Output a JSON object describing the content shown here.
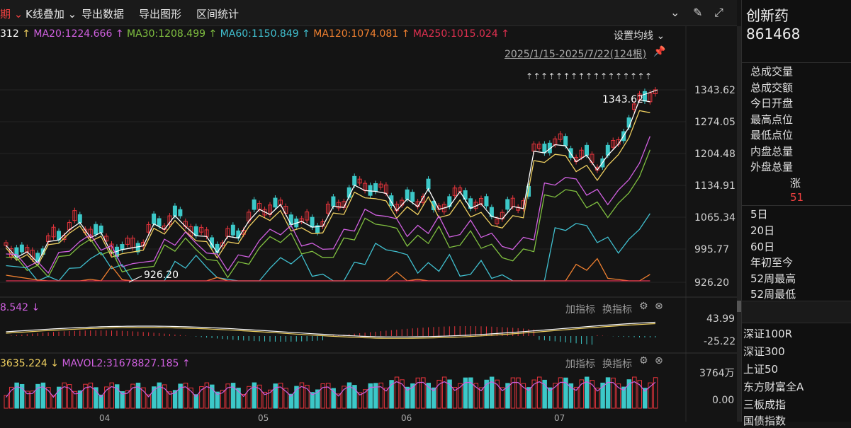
{
  "toolbar": {
    "period_tab": "期",
    "kline_overlay": "K线叠加",
    "export_data": "导出数据",
    "export_chart": "导出图形",
    "interval_stats": "区间统计"
  },
  "ma_legend": {
    "ma_first": "312",
    "ma20": "MA20:1224.666",
    "ma30": "MA30:1208.499",
    "ma60": "MA60:1150.849",
    "ma120": "MA120:1074.081",
    "ma250": "MA250:1015.024",
    "settings": "设置均线"
  },
  "range_label": "2025/1/15-2025/7/22(124根)",
  "price_axis": [
    "1343.62",
    "1274.05",
    "1204.48",
    "1134.91",
    "1065.34",
    "995.77",
    "926.20"
  ],
  "annotations": {
    "high": "1343.62",
    "low": "926.20"
  },
  "macd_panel": {
    "value": "8.542",
    "add_indicator": "加指标",
    "switch_indicator": "换指标",
    "axis_top": "43.99",
    "axis_bottom": "-25.22"
  },
  "vol_panel": {
    "value": "3635.224",
    "mavol2": "MAVOL2:31678827.185",
    "add_indicator": "加指标",
    "switch_indicator": "换指标",
    "axis_top": "3764万",
    "axis_bottom": "0.00"
  },
  "x_axis_labels": [
    "04",
    "05",
    "06",
    "07"
  ],
  "right_panel": {
    "name": "创新药",
    "code": "861468",
    "stats": [
      "总成交量",
      "总成交额",
      "今日开盘",
      "最高点位",
      "最低点位",
      "内盘总量",
      "外盘总量"
    ],
    "rise_label": "涨",
    "rise_count": "51",
    "periods": [
      "5日",
      "20日",
      "60日",
      "年初至今",
      "52周最高",
      "52周最低"
    ],
    "indexes": [
      "深证100R",
      "深证300",
      "上证50",
      "东方财富全A",
      "三板成指",
      "国债指数"
    ]
  },
  "colors": {
    "up": "#e8343c",
    "down": "#3cc8c8",
    "ma5": "#ffffff",
    "ma10": "#f0d060",
    "ma20": "#d060e0",
    "ma30": "#80c040",
    "ma60": "#40c0d0",
    "ma120": "#f08030",
    "ma250": "#e03050"
  }
}
